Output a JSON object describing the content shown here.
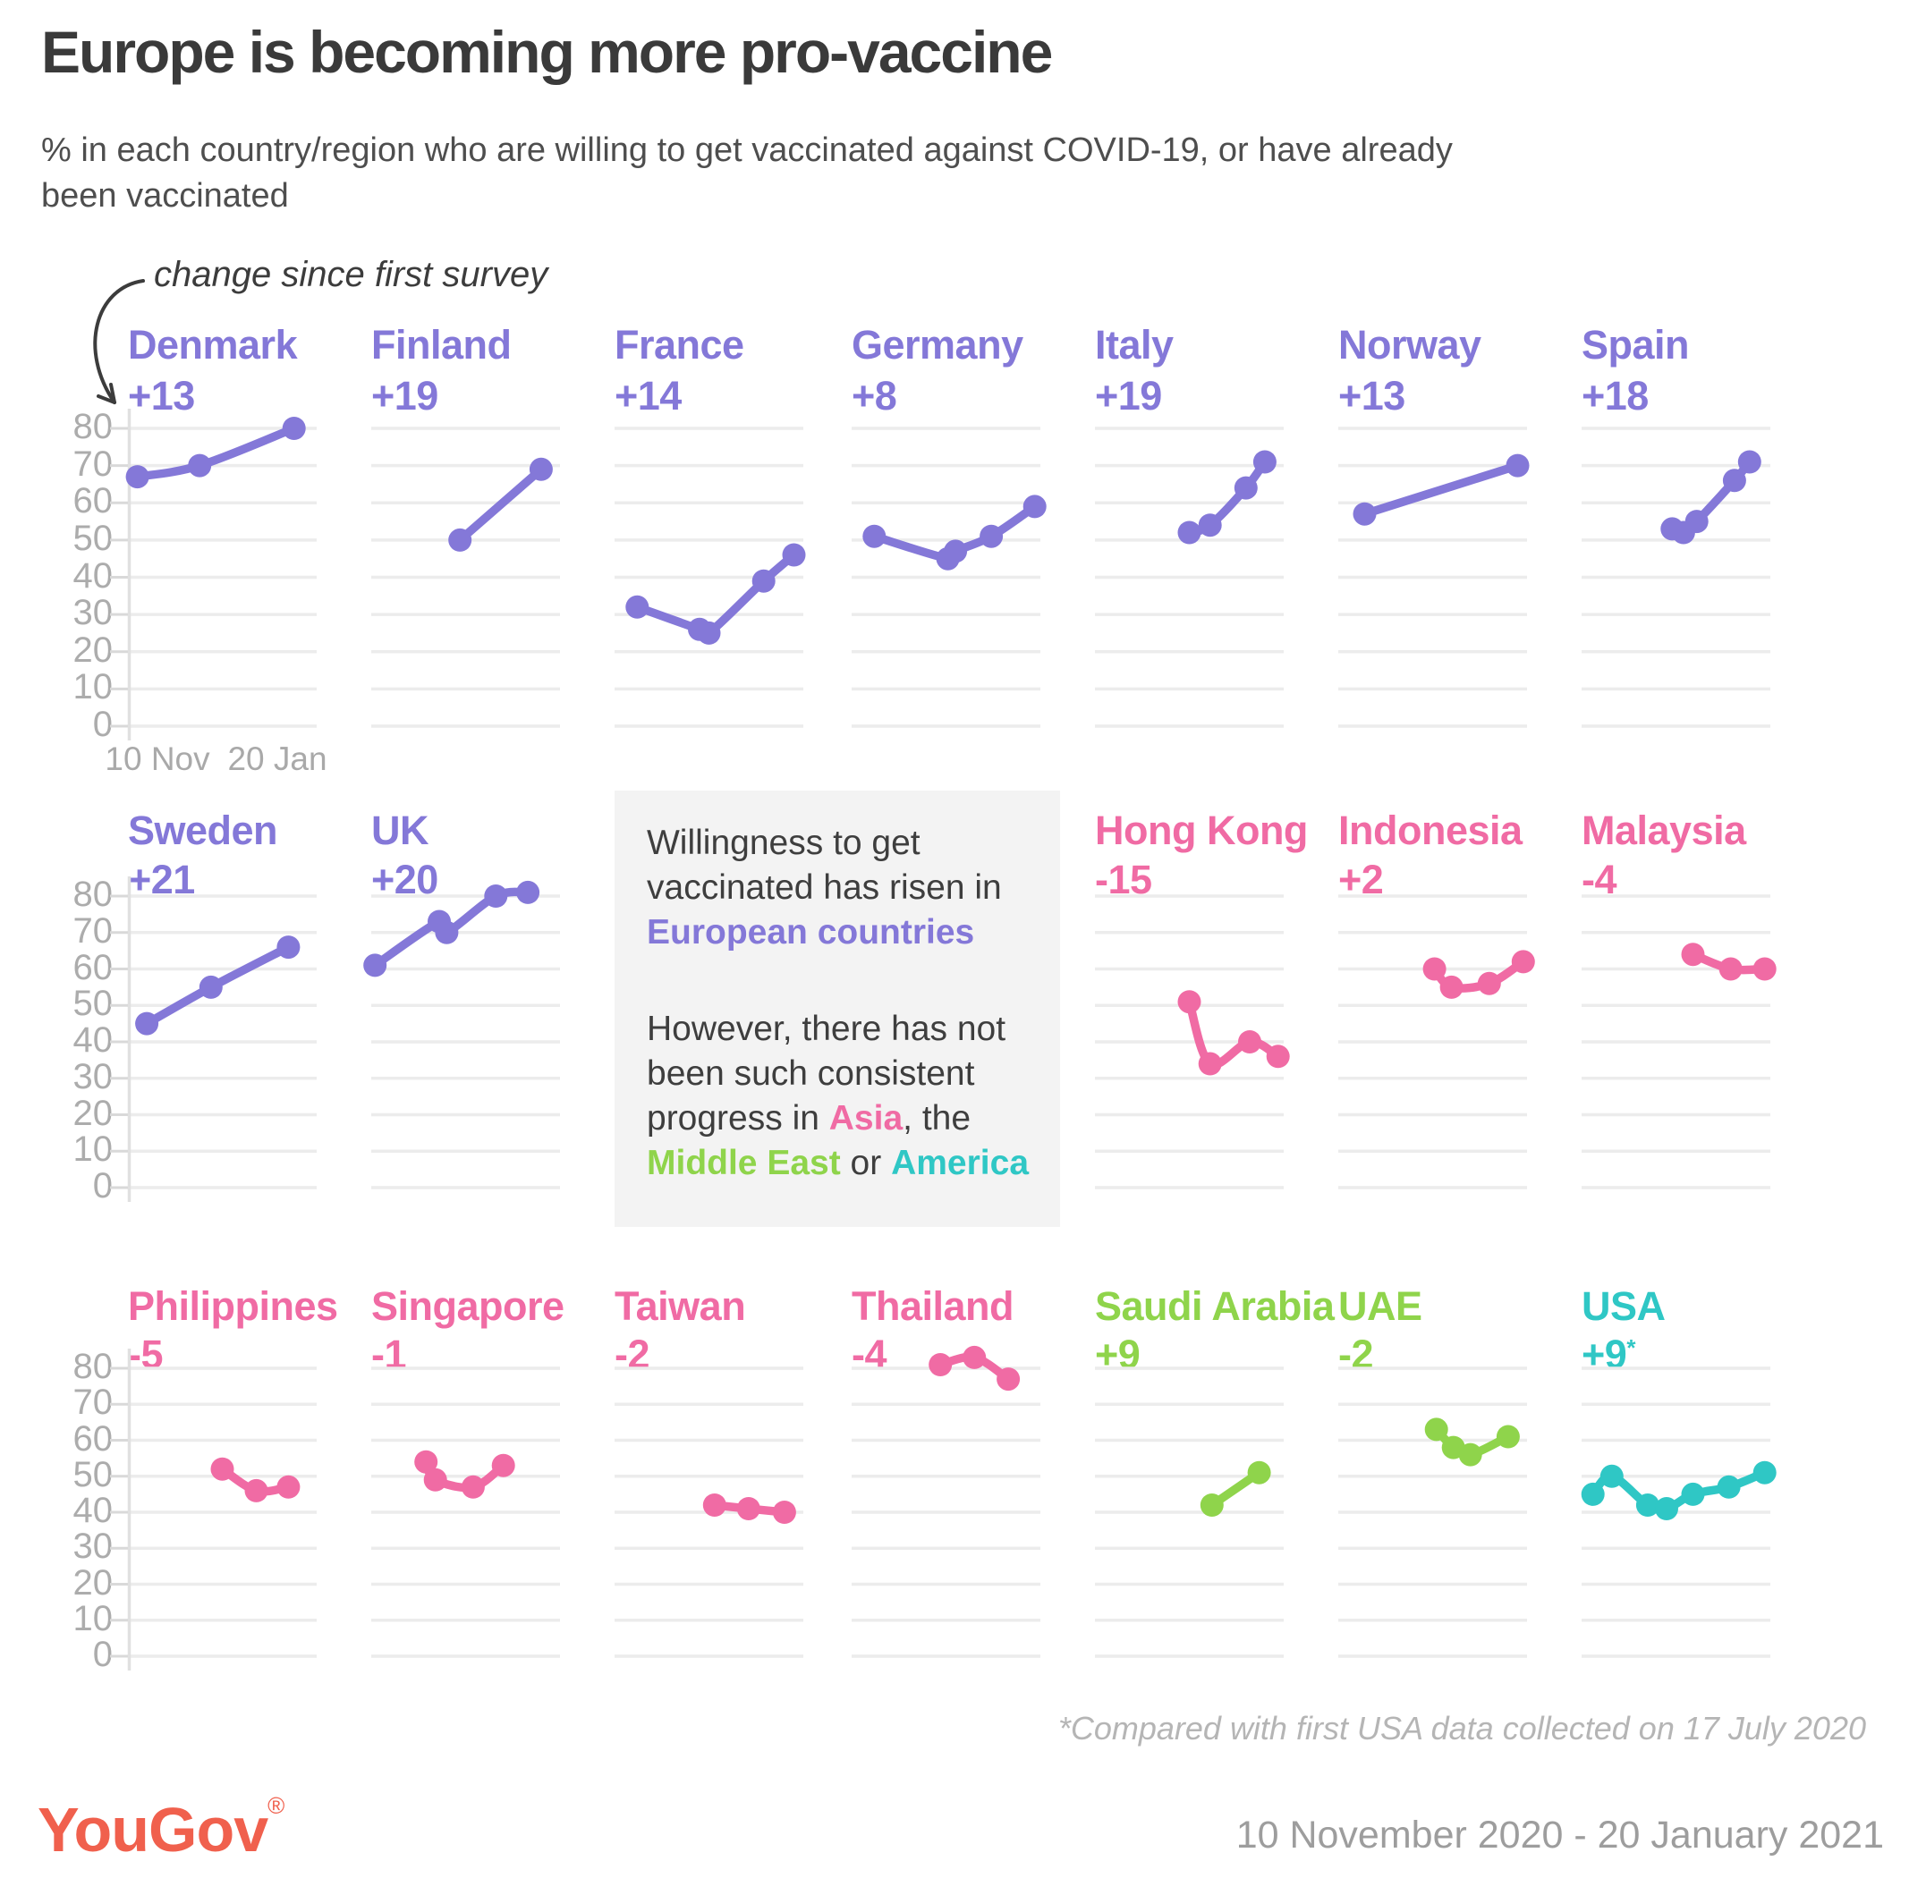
{
  "header": {
    "title": "Europe is becoming more pro-vaccine",
    "subtitle": "% in each country/region who are willing to get vaccinated against COVID-19, or have already been vaccinated",
    "annotation": "change since first survey"
  },
  "axis": {
    "y_ticks": [
      80,
      70,
      60,
      50,
      40,
      30,
      20,
      10,
      0
    ],
    "x_tick_labels": [
      "10 Nov",
      "20 Jan"
    ],
    "ylim": [
      0,
      80
    ]
  },
  "colors": {
    "europe": "#8478d8",
    "asia": "#f06ba4",
    "middle_east": "#8fd44b",
    "america": "#2fc7c5",
    "logo": "#f0604d",
    "grid": "#ececec",
    "axis_line": "#e0e0e0",
    "tick": "#d9d9d9"
  },
  "chart_data": [
    {
      "type": "line",
      "id": "denmark",
      "name": "Denmark",
      "region": "europe",
      "change_label": "+13",
      "row": 0,
      "col": 0,
      "x_domain": [
        "10 Nov",
        "20 Jan"
      ],
      "points": [
        {
          "x": 0.05,
          "v": 67
        },
        {
          "x": 0.38,
          "v": 70
        },
        {
          "x": 0.88,
          "v": 80
        }
      ]
    },
    {
      "type": "line",
      "id": "finland",
      "name": "Finland",
      "region": "europe",
      "change_label": "+19",
      "row": 0,
      "col": 1,
      "x_domain": [
        "10 Nov",
        "20 Jan"
      ],
      "points": [
        {
          "x": 0.47,
          "v": 50
        },
        {
          "x": 0.9,
          "v": 69
        }
      ]
    },
    {
      "type": "line",
      "id": "france",
      "name": "France",
      "region": "europe",
      "change_label": "+14",
      "row": 0,
      "col": 2,
      "x_domain": [
        "10 Nov",
        "20 Jan"
      ],
      "points": [
        {
          "x": 0.12,
          "v": 32
        },
        {
          "x": 0.45,
          "v": 26
        },
        {
          "x": 0.5,
          "v": 25
        },
        {
          "x": 0.79,
          "v": 39
        },
        {
          "x": 0.95,
          "v": 46
        }
      ]
    },
    {
      "type": "line",
      "id": "germany",
      "name": "Germany",
      "region": "europe",
      "change_label": "+8",
      "row": 0,
      "col": 3,
      "x_domain": [
        "10 Nov",
        "20 Jan"
      ],
      "points": [
        {
          "x": 0.12,
          "v": 51
        },
        {
          "x": 0.51,
          "v": 45
        },
        {
          "x": 0.55,
          "v": 47
        },
        {
          "x": 0.74,
          "v": 51
        },
        {
          "x": 0.97,
          "v": 59
        }
      ]
    },
    {
      "type": "line",
      "id": "italy",
      "name": "Italy",
      "region": "europe",
      "change_label": "+19",
      "row": 0,
      "col": 4,
      "x_domain": [
        "10 Nov",
        "20 Jan"
      ],
      "points": [
        {
          "x": 0.5,
          "v": 52
        },
        {
          "x": 0.61,
          "v": 54
        },
        {
          "x": 0.8,
          "v": 64
        },
        {
          "x": 0.9,
          "v": 71
        }
      ]
    },
    {
      "type": "line",
      "id": "norway",
      "name": "Norway",
      "region": "europe",
      "change_label": "+13",
      "row": 0,
      "col": 5,
      "x_domain": [
        "10 Nov",
        "20 Jan"
      ],
      "points": [
        {
          "x": 0.14,
          "v": 57
        },
        {
          "x": 0.95,
          "v": 70
        }
      ]
    },
    {
      "type": "line",
      "id": "spain",
      "name": "Spain",
      "region": "europe",
      "change_label": "+18",
      "row": 0,
      "col": 6,
      "x_domain": [
        "10 Nov",
        "20 Jan"
      ],
      "points": [
        {
          "x": 0.48,
          "v": 53
        },
        {
          "x": 0.54,
          "v": 52
        },
        {
          "x": 0.61,
          "v": 55
        },
        {
          "x": 0.81,
          "v": 66
        },
        {
          "x": 0.89,
          "v": 71
        }
      ]
    },
    {
      "type": "line",
      "id": "sweden",
      "name": "Sweden",
      "region": "europe",
      "change_label": "+21",
      "row": 1,
      "col": 0,
      "x_domain": [
        "10 Nov",
        "20 Jan"
      ],
      "points": [
        {
          "x": 0.1,
          "v": 45
        },
        {
          "x": 0.44,
          "v": 55
        },
        {
          "x": 0.85,
          "v": 66
        }
      ]
    },
    {
      "type": "line",
      "id": "uk",
      "name": "UK",
      "region": "europe",
      "change_label": "+20",
      "row": 1,
      "col": 1,
      "x_domain": [
        "10 Nov",
        "20 Jan"
      ],
      "points": [
        {
          "x": 0.02,
          "v": 61
        },
        {
          "x": 0.36,
          "v": 73
        },
        {
          "x": 0.4,
          "v": 70
        },
        {
          "x": 0.66,
          "v": 80
        },
        {
          "x": 0.83,
          "v": 81
        }
      ]
    },
    {
      "type": "line",
      "id": "hong-kong",
      "name": "Hong Kong",
      "region": "asia",
      "change_label": "-15",
      "row": 1,
      "col": 4,
      "x_domain": [
        "10 Nov",
        "20 Jan"
      ],
      "points": [
        {
          "x": 0.5,
          "v": 51
        },
        {
          "x": 0.61,
          "v": 34
        },
        {
          "x": 0.82,
          "v": 40
        },
        {
          "x": 0.97,
          "v": 36
        }
      ]
    },
    {
      "type": "line",
      "id": "indonesia",
      "name": "Indonesia",
      "region": "asia",
      "change_label": "+2",
      "row": 1,
      "col": 5,
      "x_domain": [
        "10 Nov",
        "20 Jan"
      ],
      "points": [
        {
          "x": 0.51,
          "v": 60
        },
        {
          "x": 0.6,
          "v": 55
        },
        {
          "x": 0.8,
          "v": 56
        },
        {
          "x": 0.98,
          "v": 62
        }
      ]
    },
    {
      "type": "line",
      "id": "malaysia",
      "name": "Malaysia",
      "region": "asia",
      "change_label": "-4",
      "row": 1,
      "col": 6,
      "x_domain": [
        "10 Nov",
        "20 Jan"
      ],
      "points": [
        {
          "x": 0.59,
          "v": 64
        },
        {
          "x": 0.79,
          "v": 60
        },
        {
          "x": 0.97,
          "v": 60
        }
      ]
    },
    {
      "type": "line",
      "id": "philippines",
      "name": "Philippines",
      "region": "asia",
      "change_label": "-5",
      "row": 2,
      "col": 0,
      "x_domain": [
        "10 Nov",
        "20 Jan"
      ],
      "points": [
        {
          "x": 0.5,
          "v": 52
        },
        {
          "x": 0.68,
          "v": 46
        },
        {
          "x": 0.85,
          "v": 47
        }
      ]
    },
    {
      "type": "line",
      "id": "singapore",
      "name": "Singapore",
      "region": "asia",
      "change_label": "-1",
      "row": 2,
      "col": 1,
      "x_domain": [
        "10 Nov",
        "20 Jan"
      ],
      "points": [
        {
          "x": 0.29,
          "v": 54
        },
        {
          "x": 0.34,
          "v": 49
        },
        {
          "x": 0.54,
          "v": 47
        },
        {
          "x": 0.7,
          "v": 53
        }
      ]
    },
    {
      "type": "line",
      "id": "taiwan",
      "name": "Taiwan",
      "region": "asia",
      "change_label": "-2",
      "row": 2,
      "col": 2,
      "x_domain": [
        "10 Nov",
        "20 Jan"
      ],
      "points": [
        {
          "x": 0.53,
          "v": 42
        },
        {
          "x": 0.71,
          "v": 41
        },
        {
          "x": 0.9,
          "v": 40
        }
      ]
    },
    {
      "type": "line",
      "id": "thailand",
      "name": "Thailand",
      "region": "asia",
      "change_label": "-4",
      "row": 2,
      "col": 3,
      "x_domain": [
        "10 Nov",
        "20 Jan"
      ],
      "points": [
        {
          "x": 0.47,
          "v": 81
        },
        {
          "x": 0.65,
          "v": 83
        },
        {
          "x": 0.83,
          "v": 77
        }
      ]
    },
    {
      "type": "line",
      "id": "saudi-arabia",
      "name": "Saudi Arabia",
      "region": "middle_east",
      "change_label": "+9",
      "row": 2,
      "col": 4,
      "x_domain": [
        "10 Nov",
        "20 Jan"
      ],
      "points": [
        {
          "x": 0.62,
          "v": 42
        },
        {
          "x": 0.87,
          "v": 51
        }
      ]
    },
    {
      "type": "line",
      "id": "uae",
      "name": "UAE",
      "region": "middle_east",
      "change_label": "-2",
      "row": 2,
      "col": 5,
      "x_domain": [
        "10 Nov",
        "20 Jan"
      ],
      "points": [
        {
          "x": 0.52,
          "v": 63
        },
        {
          "x": 0.61,
          "v": 58
        },
        {
          "x": 0.7,
          "v": 56
        },
        {
          "x": 0.9,
          "v": 61
        }
      ]
    },
    {
      "type": "line",
      "id": "usa",
      "name": "USA",
      "region": "america",
      "change_label": "+9",
      "change_superscript": "*",
      "row": 2,
      "col": 6,
      "x_domain": [
        "10 Nov",
        "20 Jan"
      ],
      "points": [
        {
          "x": 0.06,
          "v": 45
        },
        {
          "x": 0.16,
          "v": 50
        },
        {
          "x": 0.35,
          "v": 42
        },
        {
          "x": 0.45,
          "v": 41
        },
        {
          "x": 0.59,
          "v": 45
        },
        {
          "x": 0.78,
          "v": 47
        },
        {
          "x": 0.97,
          "v": 51
        }
      ]
    }
  ],
  "infobox": {
    "paragraphs": [
      {
        "segments": [
          {
            "text": "Willingness to get vaccinated has risen in "
          },
          {
            "text": "European countries",
            "region": "europe",
            "bold": true
          }
        ]
      },
      {
        "segments": [
          {
            "text": "However, there has not been such consistent progress in "
          },
          {
            "text": "Asia",
            "region": "asia",
            "bold": true
          },
          {
            "text": ", the "
          },
          {
            "text": "Middle East",
            "region": "middle_east",
            "bold": true
          },
          {
            "text": " or "
          },
          {
            "text": "America",
            "region": "america",
            "bold": true
          }
        ]
      }
    ]
  },
  "footnote": "*Compared with first USA data collected on 17 July 2020",
  "footer": {
    "logo": "YouGov",
    "reg": "®",
    "dates": "10 November 2020 - 20 January 2021"
  }
}
